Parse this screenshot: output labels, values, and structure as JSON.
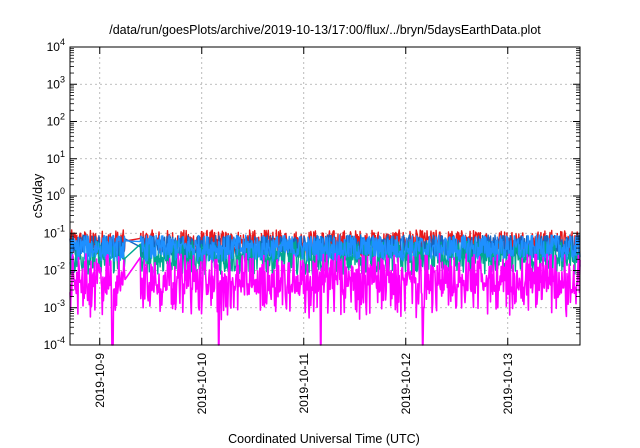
{
  "chart_data": {
    "type": "line",
    "title": "/data/run/goesPlots/archive/2019-10-13/17:00/flux/../bryn/5daysEarthData.plot",
    "xlabel": "Coordinated Universal Time (UTC)",
    "ylabel": "cSv/day",
    "yscale": "log",
    "ylim": [
      0.0001,
      10000
    ],
    "xlim": [
      "2019-10-08T17:00",
      "2019-10-13T17:00"
    ],
    "grid": true,
    "legend": "none",
    "x_ticks": [
      "2019-10-9",
      "2019-10-10",
      "2019-10-11",
      "2019-10-12",
      "2019-10-13"
    ],
    "y_ticks": [
      {
        "base": "10",
        "exp": "-4",
        "value": 0.0001
      },
      {
        "base": "10",
        "exp": "-3",
        "value": 0.001
      },
      {
        "base": "10",
        "exp": "-2",
        "value": 0.01
      },
      {
        "base": "10",
        "exp": "-1",
        "value": 0.1
      },
      {
        "base": "10",
        "exp": "0",
        "value": 1
      },
      {
        "base": "10",
        "exp": "1",
        "value": 10
      },
      {
        "base": "10",
        "exp": "2",
        "value": 100
      },
      {
        "base": "10",
        "exp": "3",
        "value": 1000
      },
      {
        "base": "10",
        "exp": "4",
        "value": 10000
      }
    ],
    "data_gaps": [
      [
        "2019-10-09T06:00",
        "2019-10-09T09:30"
      ]
    ],
    "series": [
      {
        "color": "#e8191b",
        "base": 0.055,
        "noise": 0.35,
        "dips_to_min": false
      },
      {
        "color": "#1565c0",
        "base": 0.045,
        "noise": 0.3,
        "dips_to_min": false
      },
      {
        "color": "#00a890",
        "base": 0.022,
        "noise": 0.45,
        "dips_to_min": false
      },
      {
        "color": "#1e90ff",
        "base": 0.04,
        "noise": 0.35,
        "dips_to_min": false
      },
      {
        "color": "#ff00ff",
        "base": 0.008,
        "noise": 0.55,
        "dips_to_min": true,
        "dip_times": [
          "2019-10-09T03:00",
          "2019-10-10T04:00",
          "2019-10-11T04:00",
          "2019-10-12T04:00"
        ]
      }
    ]
  }
}
